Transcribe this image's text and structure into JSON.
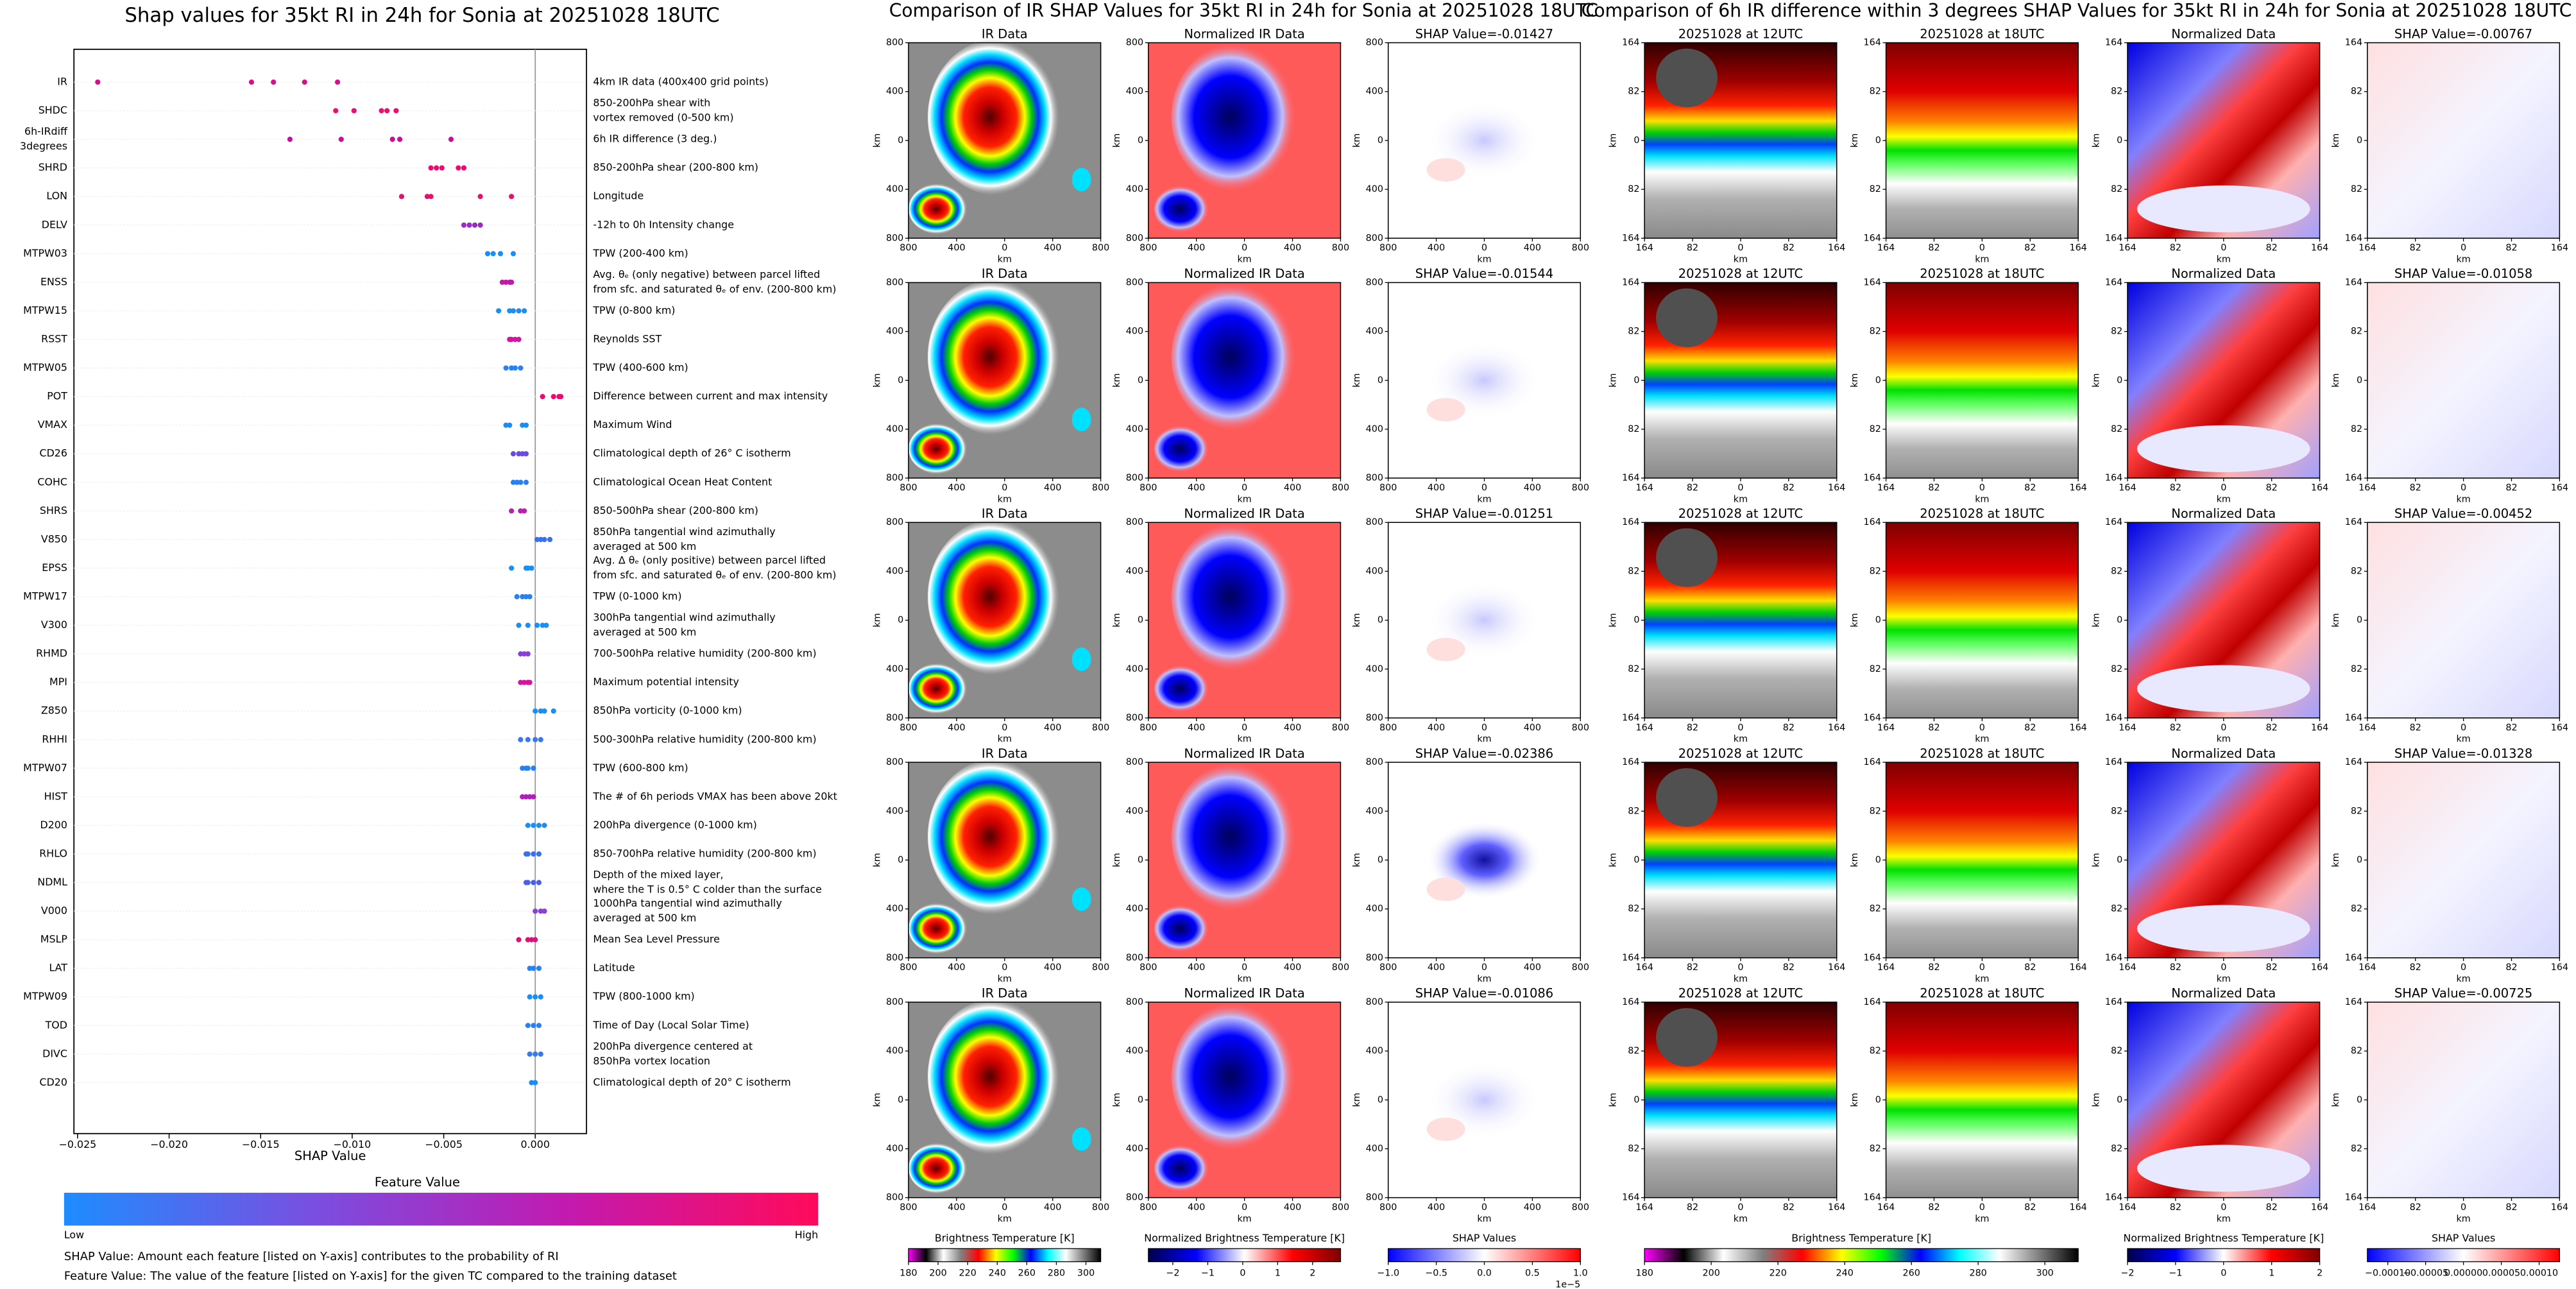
{
  "chart_data": [
    {
      "type": "beeswarm",
      "title": "Shap values for 35kt RI in 24h for Sonia at 20251028 18UTC",
      "xlabel": "SHAP Value",
      "xlim": [
        -0.0252,
        0.0028
      ],
      "xticks": [
        {
          "value": -0.025,
          "label": "−0.025"
        },
        {
          "value": -0.02,
          "label": "−0.020"
        },
        {
          "value": -0.015,
          "label": "−0.015"
        },
        {
          "value": -0.01,
          "label": "−0.010"
        },
        {
          "value": -0.005,
          "label": "−0.005"
        },
        {
          "value": 0,
          "label": "0.000"
        }
      ],
      "series": [
        {
          "name": [
            "IR"
          ],
          "description": [
            "4km IR data (400x400 grid points)"
          ],
          "color": "#d80f8c",
          "values": [
            -0.0239,
            -0.0155,
            -0.0143,
            -0.0126,
            -0.0108
          ]
        },
        {
          "name": [
            "SHDC"
          ],
          "description": [
            "850-200hPa shear with",
            "vortex removed (0-500 km)"
          ],
          "color": "#ee0d72",
          "values": [
            -0.0109,
            -0.0099,
            -0.0084,
            -0.0081,
            -0.0076
          ]
        },
        {
          "name": [
            "6h-IRdiff",
            "3degrees"
          ],
          "description": [
            "6h IR difference (3 deg.)"
          ],
          "color": "#c4109a",
          "values": [
            -0.0134,
            -0.0106,
            -0.0078,
            -0.0074,
            -0.0046
          ]
        },
        {
          "name": [
            "SHRD"
          ],
          "description": [
            "850-200hPa shear (200-800 km)"
          ],
          "color": "#f0086e",
          "values": [
            -0.0057,
            -0.0054,
            -0.0051,
            -0.0042,
            -0.0039
          ]
        },
        {
          "name": [
            "LON"
          ],
          "description": [
            "Longitude"
          ],
          "color": "#e8106f",
          "values": [
            -0.0073,
            -0.0059,
            -0.0057,
            -0.003,
            -0.0013
          ]
        },
        {
          "name": [
            "DELV"
          ],
          "description": [
            "-12h to 0h Intensity change"
          ],
          "color": "#9a2bc0",
          "values": [
            -0.0039,
            -0.0036,
            -0.0033,
            -0.003
          ]
        },
        {
          "name": [
            "MTPW03"
          ],
          "description": [
            "TPW (200-400 km)"
          ],
          "color": "#1a8ef5",
          "values": [
            -0.0026,
            -0.0023,
            -0.0019,
            -0.0012
          ]
        },
        {
          "name": [
            "ENSS"
          ],
          "description": [
            "Avg. θₑ (only negative) between parcel lifted",
            "from sfc. and saturated θₑ of env. (200-800 km)"
          ],
          "color": "#c01aa8",
          "values": [
            -0.0018,
            -0.0016,
            -0.0014,
            -0.0013
          ]
        },
        {
          "name": [
            "MTPW15"
          ],
          "description": [
            "TPW (0-800 km)"
          ],
          "color": "#1a8ef5",
          "values": [
            -0.002,
            -0.0014,
            -0.0012,
            -0.0009,
            -0.0006
          ]
        },
        {
          "name": [
            "RSST"
          ],
          "description": [
            "Reynolds SST"
          ],
          "color": "#d413a0",
          "values": [
            -0.0014,
            -0.0013,
            -0.0011,
            -0.0009
          ]
        },
        {
          "name": [
            "MTPW05"
          ],
          "description": [
            "TPW (400-600 km)"
          ],
          "color": "#2a80f0",
          "values": [
            -0.0016,
            -0.0013,
            -0.0011,
            -0.0008
          ]
        },
        {
          "name": [
            "POT"
          ],
          "description": [
            "Difference between current and max intensity"
          ],
          "color": "#f0086e",
          "values": [
            0.0004,
            0.001,
            0.0013,
            0.0014
          ]
        },
        {
          "name": [
            "VMAX"
          ],
          "description": [
            "Maximum Wind"
          ],
          "color": "#1a8ef5",
          "values": [
            -0.0016,
            -0.0014,
            -0.0007,
            -0.0005
          ]
        },
        {
          "name": [
            "CD26"
          ],
          "description": [
            "Climatological depth of 26° C isotherm"
          ],
          "color": "#6a4ae0",
          "values": [
            -0.0012,
            -0.0009,
            -0.0007,
            -0.0005
          ]
        },
        {
          "name": [
            "COHC"
          ],
          "description": [
            "Climatological Ocean Heat Content"
          ],
          "color": "#2a80f0",
          "values": [
            -0.0012,
            -0.001,
            -0.0008,
            -0.0005
          ]
        },
        {
          "name": [
            "SHRS"
          ],
          "description": [
            "850-500hPa shear (200-800 km)"
          ],
          "color": "#b820b0",
          "values": [
            -0.0013,
            -0.0008,
            -0.0006
          ]
        },
        {
          "name": [
            "V850"
          ],
          "description": [
            "850hPa tangential wind azimuthally",
            "averaged at 500 km"
          ],
          "color": "#3a70f0",
          "values": [
            0.0001,
            0.0003,
            0.0005,
            0.0008
          ]
        },
        {
          "name": [
            "EPSS"
          ],
          "description": [
            "Avg. Δ θₑ (only positive) between parcel lifted",
            "from sfc. and saturated θₑ of env. (200-800 km)"
          ],
          "color": "#1a8ef5",
          "values": [
            -0.0013,
            -0.0005,
            -0.0004,
            -0.0002
          ]
        },
        {
          "name": [
            "MTPW17"
          ],
          "description": [
            "TPW (0-1000 km)"
          ],
          "color": "#2a80f0",
          "values": [
            -0.001,
            -0.0007,
            -0.0005,
            -0.0003
          ]
        },
        {
          "name": [
            "V300"
          ],
          "description": [
            "300hPa tangential wind azimuthally",
            "averaged at 500 km"
          ],
          "color": "#1a8ef5",
          "values": [
            -0.0009,
            -0.0004,
            0.0001,
            0.0004,
            0.0006
          ]
        },
        {
          "name": [
            "RHMD"
          ],
          "description": [
            "700-500hPa relative humidity (200-800 km)"
          ],
          "color": "#8a40d8",
          "values": [
            -0.0008,
            -0.0006,
            -0.0004
          ]
        },
        {
          "name": [
            "MPI"
          ],
          "description": [
            "Maximum potential intensity"
          ],
          "color": "#d413a0",
          "values": [
            -0.0008,
            -0.0006,
            -0.0004,
            -0.0003
          ]
        },
        {
          "name": [
            "Z850"
          ],
          "description": [
            "850hPa vorticity (0-1000 km)"
          ],
          "color": "#1a8ef5",
          "values": [
            0,
            0.0003,
            0.0005,
            0.001
          ]
        },
        {
          "name": [
            "RHHI"
          ],
          "description": [
            "500-300hPa relative humidity (200-800 km)"
          ],
          "color": "#3a78f0",
          "values": [
            -0.0008,
            -0.0004,
            0,
            0.0003
          ]
        },
        {
          "name": [
            "MTPW07"
          ],
          "description": [
            "TPW (600-800 km)"
          ],
          "color": "#2a80f0",
          "values": [
            -0.0007,
            -0.0005,
            -0.0004,
            -0.0001
          ]
        },
        {
          "name": [
            "HIST"
          ],
          "description": [
            "The # of 6h periods VMAX has been above 20kt"
          ],
          "color": "#b020b8",
          "values": [
            -0.0007,
            -0.0005,
            -0.0003,
            -0.0001
          ]
        },
        {
          "name": [
            "D200"
          ],
          "description": [
            "200hPa divergence (0-1000 km)"
          ],
          "color": "#1a8ef5",
          "values": [
            -0.0004,
            -0.0001,
            0.0002,
            0.0005
          ]
        },
        {
          "name": [
            "RHLO"
          ],
          "description": [
            "850-700hPa relative humidity (200-800 km)"
          ],
          "color": "#3a70f0",
          "values": [
            -0.0005,
            -0.0004,
            -0.0001,
            0.0002
          ]
        },
        {
          "name": [
            "NDML"
          ],
          "description": [
            "Depth of the mixed layer,",
            "where the T is 0.5° C colder than the surface"
          ],
          "color": "#4a60e8",
          "values": [
            -0.0005,
            -0.0004,
            -0.0001,
            0.0002
          ]
        },
        {
          "name": [
            "V000"
          ],
          "description": [
            "1000hPa tangential wind azimuthally",
            "averaged at 500 km"
          ],
          "color": "#8a40d8",
          "values": [
            0,
            0.0003,
            0.0005
          ]
        },
        {
          "name": [
            "MSLP"
          ],
          "description": [
            "Mean Sea Level Pressure"
          ],
          "color": "#e0107a",
          "values": [
            -0.0009,
            -0.0004,
            -0.0002,
            0
          ]
        },
        {
          "name": [
            "LAT"
          ],
          "description": [
            "Latitude"
          ],
          "color": "#2a80f0",
          "values": [
            -0.0003,
            -0.0001,
            0.0002
          ]
        },
        {
          "name": [
            "MTPW09"
          ],
          "description": [
            "TPW (800-1000 km)"
          ],
          "color": "#1a8ef5",
          "values": [
            -0.0003,
            0,
            0.0003
          ]
        },
        {
          "name": [
            "TOD"
          ],
          "description": [
            "Time of Day (Local Solar Time)"
          ],
          "color": "#2a80f0",
          "values": [
            -0.0004,
            -0.0001,
            0.0002
          ]
        },
        {
          "name": [
            "DIVC"
          ],
          "description": [
            "200hPa divergence centered at",
            "850hPa vortex location"
          ],
          "color": "#3a78f0",
          "values": [
            -0.0003,
            0,
            0.0003
          ]
        },
        {
          "name": [
            "CD20"
          ],
          "description": [
            "Climatological depth of 20° C isotherm"
          ],
          "color": "#1a8ef5",
          "values": [
            -0.0002,
            0
          ]
        }
      ],
      "colorbar": {
        "title": "Feature Value",
        "low": "Low",
        "high": "High",
        "colors": [
          "#1e8cff",
          "#7a4ee0",
          "#c21ab0",
          "#ff0a5a"
        ]
      },
      "notes": [
        "SHAP Value: Amount each feature [listed on Y-axis] contributes to the probability of RI",
        "Feature Value: The value of the feature [listed on Y-axis] for the given TC compared to the training dataset"
      ]
    },
    {
      "type": "image_grid",
      "title": "Comparison of IR SHAP Values for 35kt RI in 24h for Sonia at 20251028 18UTC",
      "columns": [
        "IR Data",
        "Normalized IR Data"
      ],
      "shap_titles": [
        "SHAP Value=-0.01427",
        "SHAP Value=-0.01544",
        "SHAP Value=-0.01251",
        "SHAP Value=-0.02386",
        "SHAP Value=-0.01086"
      ],
      "axis_label": "km",
      "lim": [
        -800,
        800
      ],
      "ticks": [
        {
          "value": -800,
          "label": "800"
        },
        {
          "value": -400,
          "label": "400"
        },
        0,
        400,
        800
      ],
      "colorbars": [
        {
          "label": "Brightness Temperature [K]",
          "lim": [
            180,
            310
          ],
          "ticks": [
            180,
            200,
            220,
            240,
            260,
            280,
            300
          ],
          "colors": [
            "#ff00ff",
            "#000000",
            "#ffffff",
            "#808080",
            "#ff0000",
            "#ffff00",
            "#00ff00",
            "#0000ff",
            "#00ffff",
            "#ffffff",
            "#808080",
            "#000000"
          ]
        },
        {
          "label": "Normalized Brightness Temperature [K]",
          "lim": [
            -2.7,
            2.8
          ],
          "ticks": [
            {
              "value": -2,
              "label": "−2"
            },
            {
              "value": -1,
              "label": "−1"
            },
            0,
            1,
            2
          ],
          "colors": [
            "#00004c",
            "#0000ff",
            "#ffffff",
            "#ff0000",
            "#800000"
          ]
        },
        {
          "label": "SHAP Values",
          "lim": [
            -1,
            1
          ],
          "ticks": [
            {
              "value": -1,
              "label": "−1.0"
            },
            {
              "value": -0.5,
              "label": "−0.5"
            },
            {
              "value": 0,
              "label": "0.0"
            },
            {
              "value": 0.5,
              "label": "0.5"
            },
            {
              "value": 1,
              "label": "1.0"
            }
          ],
          "offset_label": "1e−5",
          "colors": [
            "#0000ff",
            "#ffffff",
            "#ff0000"
          ]
        }
      ]
    },
    {
      "type": "image_grid",
      "title": "Comparison of 6h IR difference within 3 degrees SHAP Values for 35kt RI in 24h for Sonia at 20251028 18UTC",
      "columns": [
        "20251028 at 12UTC",
        "20251028 at 18UTC",
        "Normalized Data"
      ],
      "shap_titles": [
        "SHAP Value=-0.00767",
        "SHAP Value=-0.01058",
        "SHAP Value=-0.00452",
        "SHAP Value=-0.01328",
        "SHAP Value=-0.00725"
      ],
      "axis_label": "km",
      "lim": [
        -164,
        164
      ],
      "ticks": [
        {
          "value": -164,
          "label": "164"
        },
        {
          "value": -82,
          "label": "82"
        },
        0,
        82,
        164
      ],
      "colorbars": [
        {
          "label": "Brightness Temperature [K]",
          "lim": [
            180,
            310
          ],
          "ticks": [
            180,
            200,
            220,
            240,
            260,
            280,
            300
          ],
          "colors": [
            "#ff00ff",
            "#000000",
            "#ffffff",
            "#808080",
            "#ff0000",
            "#ffff00",
            "#00ff00",
            "#0000ff",
            "#00ffff",
            "#ffffff",
            "#808080",
            "#000000"
          ]
        },
        {
          "label": "Normalized Brightness Temperature [K]",
          "lim": [
            -2,
            2
          ],
          "ticks": [
            {
              "value": -2,
              "label": "−2"
            },
            {
              "value": -1,
              "label": "−1"
            },
            0,
            1,
            2
          ],
          "colors": [
            "#00004c",
            "#0000ff",
            "#ffffff",
            "#ff0000",
            "#800000"
          ]
        },
        {
          "label": "SHAP Values",
          "lim": [
            -0.000127,
            0.000127
          ],
          "ticks": [
            {
              "value": -0.0001,
              "label": "−0.00010"
            },
            {
              "value": -5e-05,
              "label": "−0.00005"
            },
            {
              "value": 0,
              "label": "0.00000"
            },
            {
              "value": 5e-05,
              "label": "0.00005"
            },
            {
              "value": 0.0001,
              "label": "0.00010"
            }
          ],
          "colors": [
            "#0000ff",
            "#ffffff",
            "#ff0000"
          ]
        }
      ]
    }
  ]
}
